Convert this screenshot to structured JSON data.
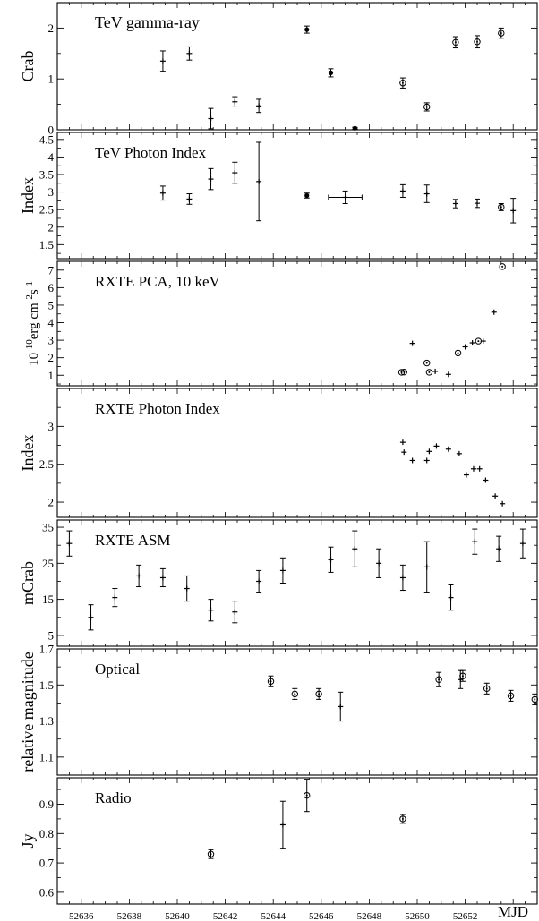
{
  "figure": {
    "xlabel": "MJD",
    "x_tick_labels": [
      "52636",
      "52638",
      "52640",
      "52642",
      "52644",
      "52646",
      "52648",
      "52650",
      "52652"
    ]
  },
  "chart_data": [
    {
      "type": "scatter",
      "title": "TeV gamma-ray",
      "ylabel": "Crab",
      "xlim": [
        52635,
        52655
      ],
      "ylim": [
        0,
        2.5
      ],
      "yticks": [
        0,
        1,
        2
      ],
      "grid": false,
      "series": [
        {
          "x": [
            52639.4,
            52640.5,
            52641.4,
            52642.4,
            52643.4,
            52645.4,
            52646.4,
            52647.4,
            52649.4,
            52650.4,
            52651.6,
            52652.5,
            52653.5
          ],
          "y": [
            1.35,
            1.5,
            0.22,
            0.55,
            0.47,
            1.97,
            1.12,
            0.03,
            0.92,
            0.45,
            1.72,
            1.73,
            1.9
          ],
          "yerr": [
            0.2,
            0.13,
            0.2,
            0.1,
            0.13,
            0.07,
            0.08,
            0.02,
            0.1,
            0.08,
            0.11,
            0.12,
            0.1
          ],
          "markers": [
            "plus",
            "plus",
            "plus",
            "plus",
            "plus",
            "filled",
            "filled",
            "filled",
            "circle",
            "circle",
            "circle",
            "circle",
            "circle"
          ]
        }
      ]
    },
    {
      "type": "scatter",
      "title": "TeV Photon Index",
      "ylabel": "Index",
      "xlim": [
        52635,
        52655
      ],
      "ylim": [
        1.1,
        4.7
      ],
      "yticks": [
        1.5,
        2,
        2.5,
        3,
        3.5,
        4,
        4.5
      ],
      "grid": false,
      "series": [
        {
          "x": [
            52639.4,
            52640.5,
            52641.4,
            52642.4,
            52643.4,
            52645.4,
            52647.0,
            52649.4,
            52650.4,
            52651.6,
            52652.5,
            52653.5,
            52654.0
          ],
          "y": [
            2.97,
            2.8,
            3.37,
            3.55,
            3.3,
            2.9,
            2.85,
            3.03,
            2.95,
            2.67,
            2.68,
            2.57,
            2.47
          ],
          "yerr": [
            0.2,
            0.15,
            0.3,
            0.3,
            1.12,
            0.07,
            0.18,
            0.18,
            0.25,
            0.12,
            0.12,
            0.1,
            0.35
          ],
          "xerr": [
            0,
            0,
            0,
            0,
            0,
            0,
            0.7,
            0,
            0,
            0,
            0,
            0,
            0
          ],
          "markers": [
            "plus",
            "plus",
            "plus",
            "plus",
            "plus",
            "filled",
            "plus",
            "plus",
            "plus",
            "plus",
            "plus",
            "circle",
            "plus"
          ]
        }
      ]
    },
    {
      "type": "scatter",
      "title": "RXTE PCA, 10 keV",
      "ylabel": "10-10erg cm-2s-1",
      "ylabel_parts": {
        "base": "10",
        "exp1": "-10",
        "mid1": "erg cm",
        "exp2": "-2",
        "mid2": "s",
        "exp3": "-1"
      },
      "xlim": [
        52635,
        52655
      ],
      "ylim": [
        0.4,
        7.5
      ],
      "yticks": [
        1,
        2,
        3,
        4,
        5,
        6,
        7
      ],
      "grid": false,
      "series": [
        {
          "x": [
            52649.35,
            52649.45,
            52649.8,
            52650.4,
            52650.5,
            52650.75,
            52651.3,
            52651.7,
            52652.0,
            52652.3,
            52652.55,
            52652.75,
            52653.2,
            52653.55
          ],
          "y": [
            1.17,
            1.18,
            2.82,
            1.7,
            1.17,
            1.22,
            1.05,
            2.27,
            2.62,
            2.85,
            2.95,
            2.95,
            4.6,
            7.2
          ],
          "markers": [
            "circle",
            "circle",
            "plus",
            "circle",
            "circle",
            "plus",
            "plus",
            "circle",
            "plus",
            "plus",
            "circle",
            "plus",
            "plus",
            "circle"
          ]
        }
      ]
    },
    {
      "type": "scatter",
      "title": "RXTE Photon Index",
      "ylabel": "Index",
      "xlim": [
        52635,
        52655
      ],
      "ylim": [
        1.8,
        3.5
      ],
      "yticks": [
        2,
        2.5,
        3
      ],
      "grid": false,
      "series": [
        {
          "x": [
            52649.4,
            52649.45,
            52649.8,
            52650.4,
            52650.5,
            52650.8,
            52651.3,
            52651.75,
            52652.05,
            52652.35,
            52652.6,
            52652.85,
            52653.25,
            52653.55
          ],
          "y": [
            2.79,
            2.66,
            2.55,
            2.55,
            2.67,
            2.74,
            2.7,
            2.64,
            2.36,
            2.44,
            2.44,
            2.29,
            2.08,
            1.98
          ],
          "markers": [
            "plus",
            "plus",
            "plus",
            "plus",
            "plus",
            "plus",
            "plus",
            "plus",
            "plus",
            "plus",
            "plus",
            "plus",
            "plus",
            "plus"
          ]
        }
      ]
    },
    {
      "type": "scatter",
      "title": "RXTE ASM",
      "ylabel": "mCrab",
      "xlim": [
        52635,
        52655
      ],
      "ylim": [
        2,
        37
      ],
      "yticks": [
        5,
        15,
        25,
        35
      ],
      "grid": false,
      "series": [
        {
          "x": [
            52635.5,
            52636.4,
            52637.4,
            52638.4,
            52639.4,
            52640.4,
            52641.4,
            52642.4,
            52643.4,
            52644.4,
            52646.4,
            52647.4,
            52648.4,
            52649.4,
            52650.4,
            52651.4,
            52652.4,
            52653.4,
            52654.4
          ],
          "y": [
            30.5,
            10,
            15.5,
            21.5,
            21,
            18,
            12,
            11.5,
            20,
            23,
            26,
            29,
            25,
            21,
            24,
            15.5,
            31,
            29,
            30.5
          ],
          "yerr": [
            3.5,
            3.5,
            2.5,
            3,
            2.5,
            3.5,
            3,
            3,
            3,
            3.5,
            3.5,
            5,
            4,
            3.5,
            7,
            3.5,
            3.5,
            3.5,
            4
          ],
          "markers": [
            "plus",
            "plus",
            "plus",
            "plus",
            "plus",
            "plus",
            "plus",
            "plus",
            "plus",
            "plus",
            "plus",
            "plus",
            "plus",
            "plus",
            "plus",
            "plus",
            "plus",
            "plus",
            "plus"
          ]
        }
      ]
    },
    {
      "type": "scatter",
      "title": "Optical",
      "ylabel": "relative magnitude",
      "xlim": [
        52635,
        52655
      ],
      "ylim": [
        1.0,
        1.7
      ],
      "yticks": [
        1.1,
        1.3,
        1.5,
        1.7
      ],
      "grid": false,
      "series": [
        {
          "x": [
            52643.9,
            52644.9,
            52645.9,
            52646.8,
            52650.9,
            52651.8,
            52651.9,
            52652.9,
            52653.9,
            52654.9
          ],
          "y": [
            1.52,
            1.45,
            1.45,
            1.38,
            1.53,
            1.53,
            1.55,
            1.48,
            1.44,
            1.42
          ],
          "yerr": [
            0.03,
            0.03,
            0.03,
            0.08,
            0.04,
            0.05,
            0.03,
            0.03,
            0.03,
            0.03
          ],
          "markers": [
            "circle",
            "circle",
            "circle",
            "plus",
            "circle",
            "plus",
            "circle",
            "circle",
            "circle",
            "circle"
          ]
        }
      ]
    },
    {
      "type": "scatter",
      "title": "Radio",
      "ylabel": "Jy",
      "xlim": [
        52635,
        52655
      ],
      "ylim": [
        0.56,
        0.99
      ],
      "yticks": [
        0.6,
        0.7,
        0.8,
        0.9
      ],
      "grid": false,
      "series": [
        {
          "x": [
            52641.4,
            52644.4,
            52645.4,
            52649.4
          ],
          "y": [
            0.73,
            0.83,
            0.93,
            0.85
          ],
          "yerr": [
            0.015,
            0.08,
            0.055,
            0.015
          ],
          "markers": [
            "circle",
            "plus",
            "circle",
            "circle"
          ]
        }
      ]
    }
  ]
}
